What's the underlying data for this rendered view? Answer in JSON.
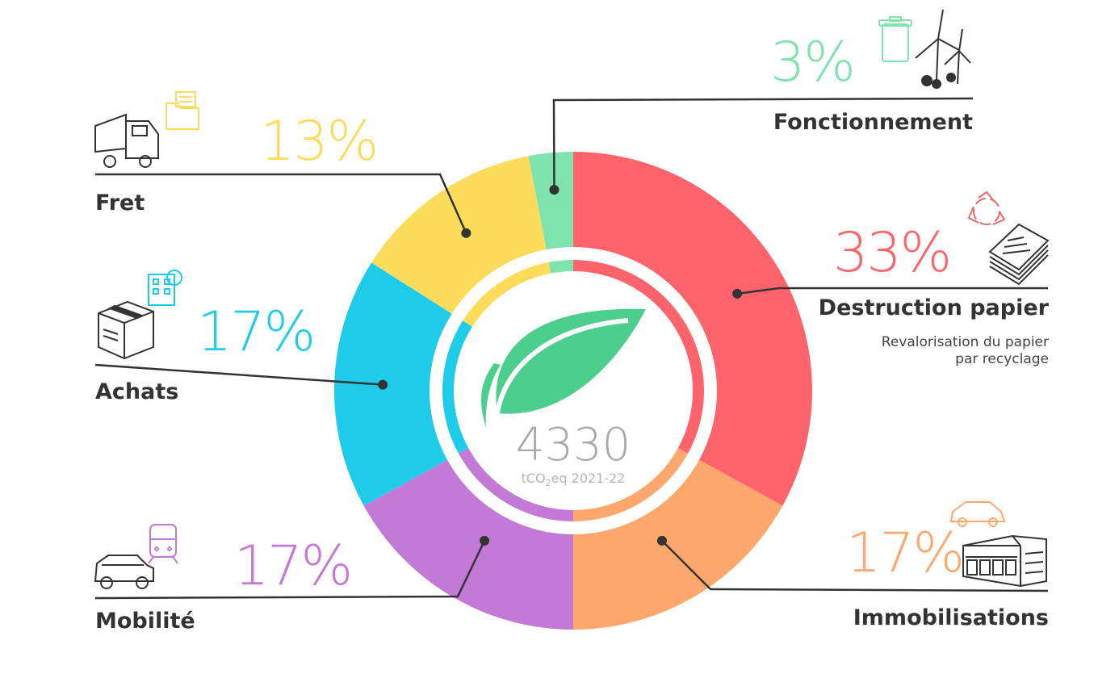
{
  "chart_data": {
    "type": "pie",
    "total": "4330",
    "unit": "tCO2eq 2021-22",
    "unit_parts": {
      "prefix": "tCO",
      "subscript": "2",
      "suffix": "eq 2021-22"
    },
    "slices": [
      {
        "label": "Destruction papier",
        "pct_label": "33%",
        "value": 33,
        "color": "#ff636b",
        "note": "Revalorisation du papier par recyclage"
      },
      {
        "label": "Immobilisations",
        "pct_label": "17%",
        "value": 17,
        "color": "#ffa86e"
      },
      {
        "label": "Mobilité",
        "pct_label": "17%",
        "value": 17,
        "color": "#c27ad6"
      },
      {
        "label": "Achats",
        "pct_label": "17%",
        "value": 17,
        "color": "#1ecbe8"
      },
      {
        "label": "Fret",
        "pct_label": "13%",
        "value": 13,
        "color": "#fddc5c"
      },
      {
        "label": "Fonctionnement",
        "pct_label": "3%",
        "value": 3,
        "color": "#7ee3ad"
      }
    ]
  },
  "icons": {
    "center": "leaf-icon",
    "fonctionnement": [
      "trash-bin-icon",
      "wind-turbine-icon"
    ],
    "destruction": [
      "recycle-icon",
      "paper-stack-icon"
    ],
    "immobilisations": [
      "car-outline-icon",
      "building-icon"
    ],
    "mobilite": [
      "train-icon",
      "suv-icon"
    ],
    "achats": [
      "office-building-icon",
      "box-icon"
    ],
    "fret": [
      "folder-icon",
      "truck-icon"
    ]
  },
  "colors": {
    "leaf": "#4ccf8c",
    "leader": "#333333",
    "center_text": "#a9a9a9"
  }
}
